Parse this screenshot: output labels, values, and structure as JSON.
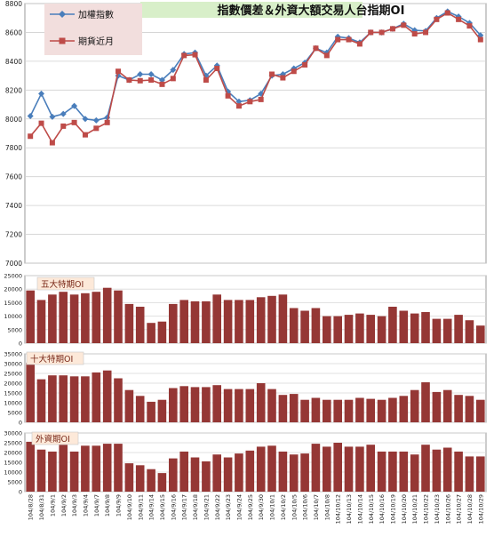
{
  "title": "指數價差＆外資大額交易人台指期OI",
  "dates": [
    "104/8/28",
    "104/8/31",
    "104/9/1",
    "104/9/2",
    "104/9/3",
    "104/9/4",
    "104/9/7",
    "104/9/8",
    "104/9/9",
    "104/9/10",
    "104/9/11",
    "104/9/14",
    "104/9/15",
    "104/9/16",
    "104/9/17",
    "104/9/18",
    "104/9/21",
    "104/9/22",
    "104/9/23",
    "104/9/24",
    "104/9/25",
    "104/9/30",
    "104/10/1",
    "104/10/2",
    "104/10/5",
    "104/10/6",
    "104/10/7",
    "104/10/8",
    "104/10/12",
    "104/10/13",
    "104/10/14",
    "104/10/15",
    "104/10/16",
    "104/10/19",
    "104/10/20",
    "104/10/21",
    "104/10/22",
    "104/10/23",
    "104/10/26",
    "104/10/27",
    "104/10/28",
    "104/10/29"
  ],
  "chart_data": [
    {
      "type": "line",
      "title": "指數價差＆外資大額交易人台指期OI",
      "ylim": [
        7000,
        8800
      ],
      "yticks": [
        7000,
        7200,
        7400,
        7600,
        7800,
        8000,
        8200,
        8400,
        8600,
        8800
      ],
      "legend_position": "top-left",
      "series": [
        {
          "name": "加權指數",
          "color": "#4a7ebb",
          "marker": "diamond",
          "values": [
            8020,
            8175,
            8015,
            8035,
            8090,
            8000,
            7990,
            8010,
            8300,
            8270,
            8310,
            8310,
            8270,
            8340,
            8450,
            8460,
            8300,
            8370,
            8190,
            8120,
            8130,
            8175,
            8300,
            8310,
            8350,
            8390,
            8490,
            8460,
            8570,
            8560,
            8530,
            8600,
            8600,
            8625,
            8660,
            8615,
            8610,
            8700,
            8745,
            8710,
            8665,
            8580
          ]
        },
        {
          "name": "期貨近月",
          "color": "#be4b48",
          "marker": "square",
          "values": [
            7880,
            7970,
            7835,
            7950,
            7975,
            7890,
            7935,
            7975,
            8330,
            8270,
            8265,
            8270,
            8240,
            8280,
            8440,
            8445,
            8270,
            8350,
            8160,
            8090,
            8120,
            8135,
            8310,
            8285,
            8330,
            8375,
            8490,
            8440,
            8550,
            8550,
            8520,
            8600,
            8600,
            8625,
            8650,
            8590,
            8600,
            8690,
            8735,
            8690,
            8645,
            8550
          ]
        }
      ]
    },
    {
      "type": "bar",
      "title": "五大特期OI",
      "ylim": [
        0,
        25000
      ],
      "yticks": [
        0,
        5000,
        10000,
        15000,
        20000,
        25000
      ],
      "series": [
        {
          "name": "五大特期OI",
          "color": "#953735",
          "values": [
            19500,
            16000,
            18000,
            19000,
            18000,
            18500,
            19000,
            20500,
            19500,
            14500,
            13500,
            7500,
            8000,
            14500,
            16000,
            15500,
            15500,
            18000,
            16000,
            16000,
            16000,
            17000,
            17500,
            18000,
            13000,
            12000,
            13000,
            10000,
            10000,
            10500,
            11000,
            10500,
            10000,
            13500,
            12000,
            11000,
            11500,
            9000,
            9000,
            10500,
            8500,
            6500
          ]
        }
      ]
    },
    {
      "type": "bar",
      "title": "十大特期OI",
      "ylim": [
        0,
        35000
      ],
      "yticks": [
        0,
        5000,
        10000,
        15000,
        20000,
        25000,
        30000,
        35000
      ],
      "series": [
        {
          "name": "十大特期OI",
          "color": "#953735",
          "values": [
            30500,
            22000,
            24000,
            24000,
            23500,
            23500,
            25500,
            26500,
            22500,
            16500,
            13500,
            10500,
            11500,
            17500,
            18500,
            18000,
            18000,
            19000,
            17000,
            17000,
            17000,
            20000,
            17000,
            14000,
            14500,
            11500,
            12500,
            11500,
            11500,
            11500,
            12500,
            12000,
            11500,
            12500,
            13500,
            16500,
            20500,
            15500,
            16500,
            14000,
            13500,
            11500
          ]
        }
      ]
    },
    {
      "type": "bar",
      "title": "外資期OI",
      "ylim": [
        0,
        30000
      ],
      "yticks": [
        0,
        5000,
        10000,
        15000,
        20000,
        25000,
        30000
      ],
      "series": [
        {
          "name": "外資期OI",
          "color": "#953735",
          "values": [
            25500,
            21500,
            20500,
            24000,
            20500,
            23500,
            23500,
            24500,
            24500,
            14500,
            13500,
            11500,
            9500,
            17000,
            20500,
            17500,
            15500,
            19000,
            17500,
            19500,
            21000,
            23000,
            23500,
            20500,
            19000,
            19500,
            24500,
            23000,
            25000,
            23000,
            23000,
            24000,
            20500,
            20500,
            20500,
            19000,
            24000,
            21500,
            22500,
            20500,
            18000,
            18000
          ]
        }
      ]
    }
  ]
}
